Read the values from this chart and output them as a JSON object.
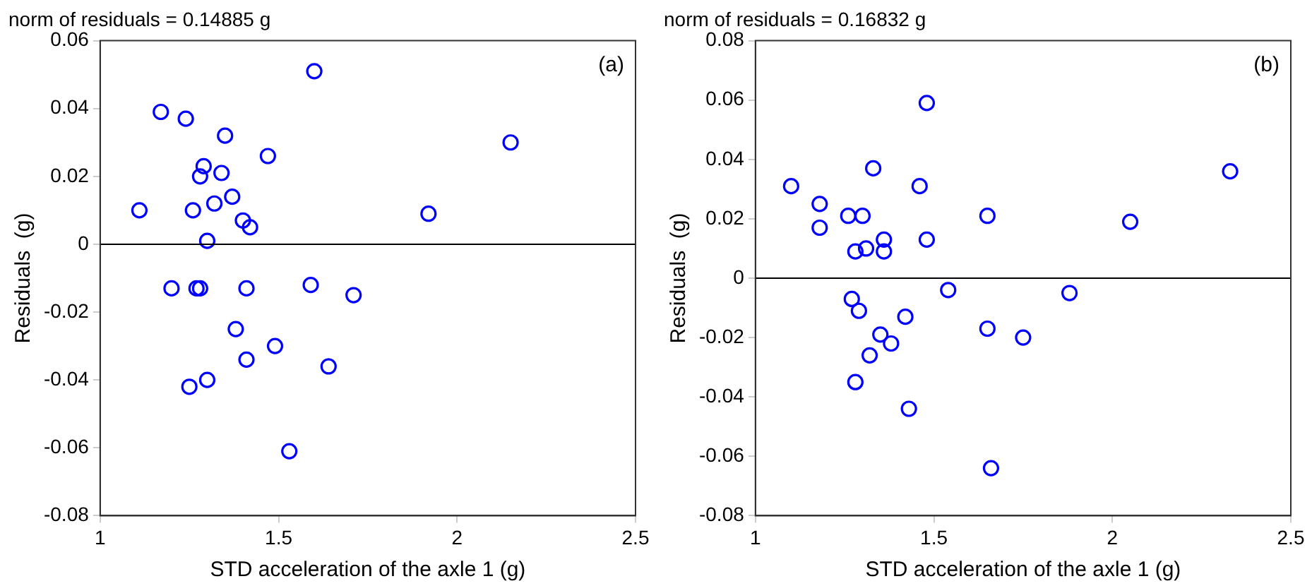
{
  "chart_data": [
    {
      "type": "scatter",
      "title": "norm of residuals = 0.14885 g",
      "xlabel": "STD acceleration of the axle 1 (g)",
      "ylabel": "Residuals  (g)",
      "annotations": [
        "(a)"
      ],
      "series": [
        {
          "color": "#0000ff",
          "x": [
            1.11,
            1.17,
            1.24,
            1.29,
            1.28,
            1.35,
            1.34,
            1.47,
            1.6,
            2.15,
            1.92,
            1.26,
            1.32,
            1.37,
            1.4,
            1.42,
            1.3,
            1.2,
            1.27,
            1.28,
            1.41,
            1.59,
            1.71,
            1.38,
            1.49,
            1.41,
            1.64,
            1.25,
            1.3,
            1.53
          ],
          "values": [
            0.01,
            0.039,
            0.037,
            0.023,
            0.02,
            0.032,
            0.021,
            0.026,
            0.051,
            0.03,
            0.009,
            0.01,
            0.012,
            0.014,
            0.007,
            0.005,
            0.001,
            -0.013,
            -0.013,
            -0.013,
            -0.013,
            -0.012,
            -0.015,
            -0.025,
            -0.03,
            -0.034,
            -0.036,
            -0.042,
            -0.04,
            -0.061
          ]
        }
      ],
      "marker": "circle",
      "xlim": [
        1,
        2.5
      ],
      "xticks": [
        1,
        1.5,
        2,
        2.5
      ],
      "ylim": [
        -0.08,
        0.06
      ],
      "yticks": [
        -0.08,
        -0.06,
        -0.04,
        -0.02,
        0,
        0.02,
        0.04,
        0.06
      ],
      "grid": false,
      "legend": false,
      "ref_lines": [
        {
          "axis": "y",
          "value": 0,
          "color": "#000000"
        }
      ]
    },
    {
      "type": "scatter",
      "title": "norm of residuals = 0.16832 g",
      "xlabel": "STD acceleration of the axle 1 (g)",
      "ylabel": "Residuals  (g)",
      "annotations": [
        "(b)"
      ],
      "series": [
        {
          "color": "#0000ff",
          "x": [
            1.1,
            1.18,
            1.18,
            1.26,
            1.3,
            1.33,
            1.28,
            1.31,
            1.36,
            1.36,
            1.46,
            1.48,
            1.48,
            1.65,
            2.05,
            2.33,
            1.27,
            1.29,
            1.54,
            1.88,
            1.42,
            1.35,
            1.38,
            1.65,
            1.75,
            1.32,
            1.28,
            1.43,
            1.66
          ],
          "values": [
            0.031,
            0.025,
            0.017,
            0.021,
            0.021,
            0.037,
            0.009,
            0.01,
            0.009,
            0.013,
            0.031,
            0.059,
            0.013,
            0.021,
            0.019,
            0.036,
            -0.007,
            -0.011,
            -0.004,
            -0.005,
            -0.013,
            -0.019,
            -0.022,
            -0.017,
            -0.02,
            -0.026,
            -0.035,
            -0.044,
            -0.064
          ]
        }
      ],
      "marker": "circle",
      "xlim": [
        1,
        2.5
      ],
      "xticks": [
        1,
        1.5,
        2,
        2.5
      ],
      "ylim": [
        -0.08,
        0.08
      ],
      "yticks": [
        -0.08,
        -0.06,
        -0.04,
        -0.02,
        0,
        0.02,
        0.04,
        0.06,
        0.08
      ],
      "grid": false,
      "legend": false,
      "ref_lines": [
        {
          "axis": "y",
          "value": 0,
          "color": "#000000"
        }
      ]
    }
  ]
}
